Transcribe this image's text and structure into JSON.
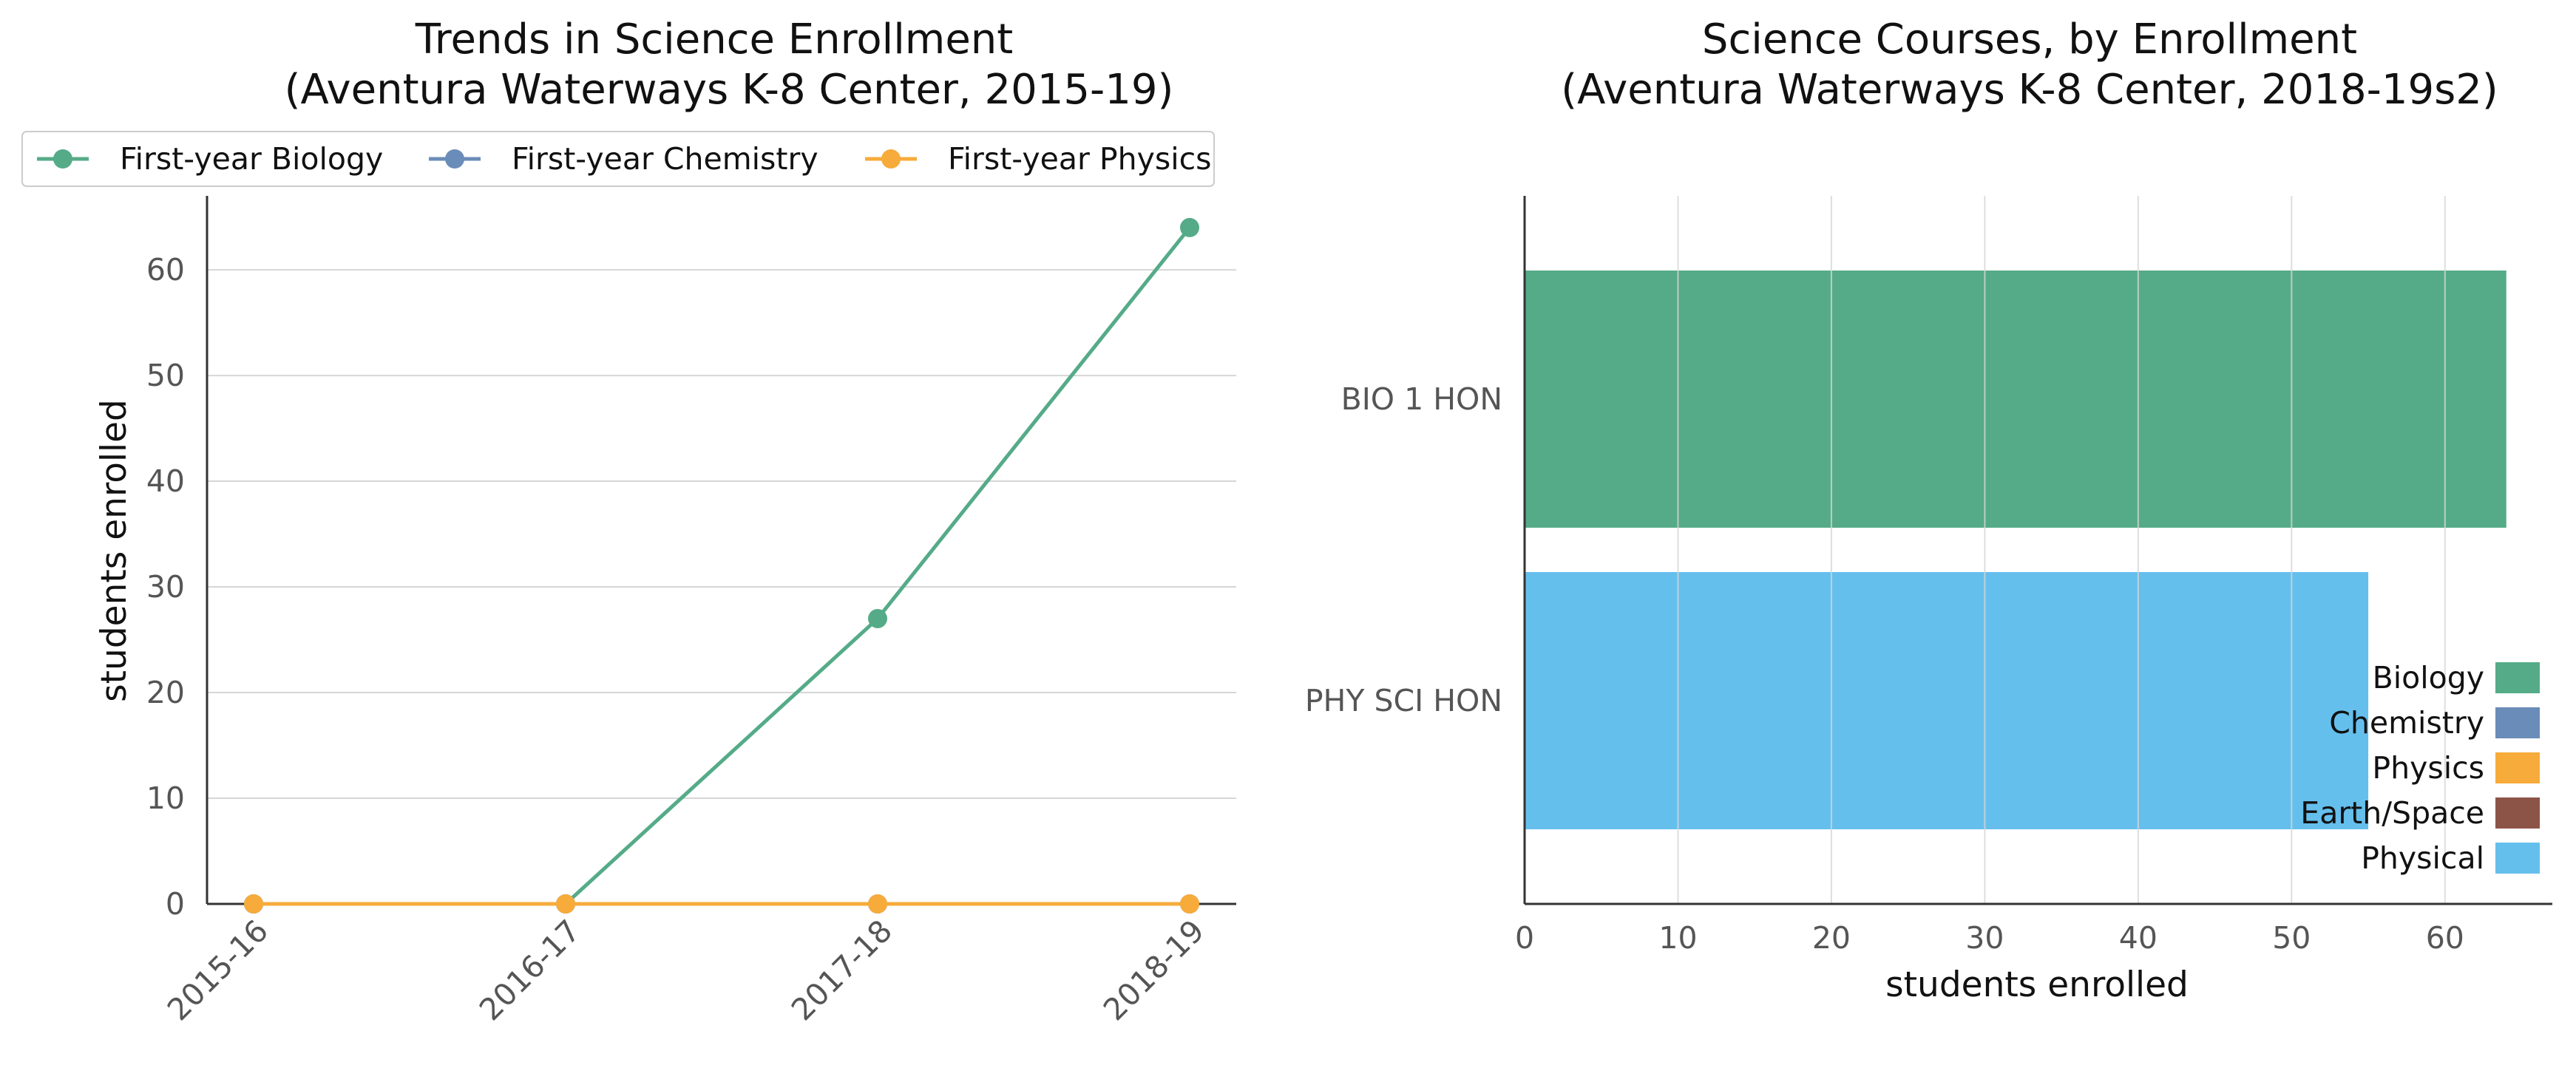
{
  "chart_data": [
    {
      "type": "line",
      "title": "Trends in Science Enrollment",
      "subtitle": "(Aventura Waterways K-8 Center, 2015-19)",
      "xlabel": "",
      "ylabel": "students enrolled",
      "categories": [
        "2015-16",
        "2016-17",
        "2017-18",
        "2018-19"
      ],
      "ylim": [
        0,
        67
      ],
      "yticks": [
        0,
        10,
        20,
        30,
        40,
        50,
        60
      ],
      "grid": "horizontal",
      "legend_position": "top",
      "series": [
        {
          "name": "First-year Biology",
          "color": "#55ab88",
          "values": [
            0,
            0,
            27,
            64
          ]
        },
        {
          "name": "First-year Chemistry",
          "color": "#6a8cb8",
          "values": [
            0,
            0,
            0,
            0
          ]
        },
        {
          "name": "First-year Physics",
          "color": "#f7ab3b",
          "values": [
            0,
            0,
            0,
            0
          ]
        }
      ]
    },
    {
      "type": "bar",
      "orientation": "horizontal",
      "title": "Science Courses, by Enrollment",
      "subtitle": "(Aventura Waterways K-8 Center, 2018-19s2)",
      "xlabel": "students enrolled",
      "ylabel": "",
      "categories": [
        "BIO 1 HON",
        "PHY SCI HON"
      ],
      "values": [
        64,
        55
      ],
      "bar_colors": [
        "#55ab88",
        "#65bfed"
      ],
      "xlim": [
        0,
        67
      ],
      "xticks": [
        0,
        10,
        20,
        30,
        40,
        50,
        60
      ],
      "grid": "vertical",
      "legend_position": "lower-right",
      "legend": [
        {
          "label": "Biology",
          "color": "#55ab88"
        },
        {
          "label": "Chemistry",
          "color": "#6a8cb8"
        },
        {
          "label": "Physics",
          "color": "#f7ab3b"
        },
        {
          "label": "Earth/Space",
          "color": "#8c5446"
        },
        {
          "label": "Physical",
          "color": "#65bfed"
        }
      ]
    }
  ]
}
